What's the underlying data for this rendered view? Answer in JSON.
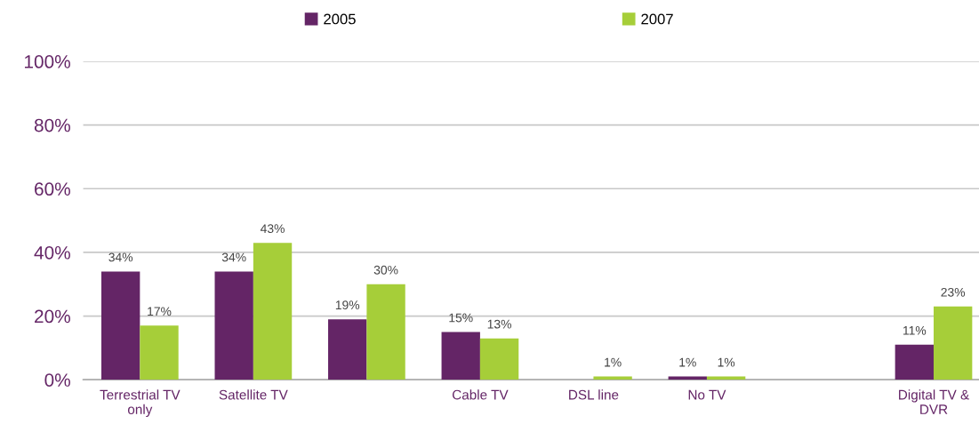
{
  "chart_data": {
    "type": "bar",
    "categories": [
      "Terrestrial TV\nonly",
      "Satellite TV",
      null,
      "Cable TV",
      "DSL line",
      "No TV",
      null,
      "Digital TV &\nDVR"
    ],
    "series": [
      {
        "name": "2005",
        "color": "#642566",
        "values": [
          34,
          34,
          19,
          15,
          null,
          1,
          null,
          11
        ],
        "value_labels": [
          "34%",
          "34%",
          "19%",
          "15%",
          null,
          "1%",
          null,
          "11%"
        ]
      },
      {
        "name": "2007",
        "color": "#a6ce39",
        "values": [
          17,
          43,
          30,
          13,
          1,
          1,
          null,
          23
        ],
        "value_labels": [
          "17%",
          "43%",
          "30%",
          "13%",
          "1%",
          "1%",
          null,
          "23%"
        ]
      }
    ],
    "ylim": [
      0,
      100
    ],
    "yticks": [
      {
        "value": 0,
        "label": "0%"
      },
      {
        "value": 20,
        "label": "20%"
      },
      {
        "value": 40,
        "label": "40%"
      },
      {
        "value": 60,
        "label": "60%"
      },
      {
        "value": 80,
        "label": "80%"
      },
      {
        "value": 100,
        "label": "100%"
      }
    ],
    "grid": "y",
    "legend": "top"
  }
}
